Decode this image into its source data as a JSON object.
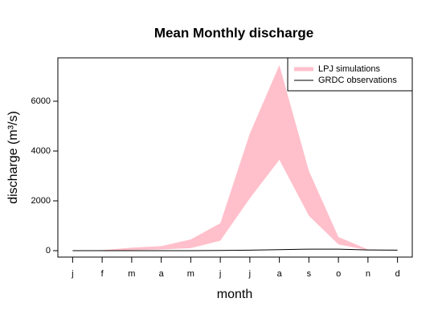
{
  "chart_data": {
    "type": "band",
    "title": "Mean Monthly discharge",
    "x_label": "month",
    "y_label": "discharge (m³/s)",
    "categories": [
      "j",
      "f",
      "m",
      "a",
      "m",
      "j",
      "j",
      "a",
      "s",
      "o",
      "n",
      "d"
    ],
    "series": [
      {
        "name": "LPJ simulations",
        "color": "#ffc0cb",
        "lower": [
          0,
          0,
          20,
          50,
          100,
          400,
          2100,
          3650,
          1400,
          250,
          20,
          10
        ],
        "upper": [
          0,
          20,
          120,
          180,
          450,
          1100,
          4700,
          7450,
          3200,
          550,
          50,
          20
        ]
      },
      {
        "name": "GRDC observations",
        "color": "#000000",
        "values": [
          0,
          0,
          0,
          0,
          0,
          10,
          20,
          40,
          60,
          60,
          30,
          20
        ]
      }
    ],
    "ylim": [
      -258,
      7742
    ],
    "yticks": [
      0,
      2000,
      4000,
      6000
    ],
    "legend": "topright"
  }
}
